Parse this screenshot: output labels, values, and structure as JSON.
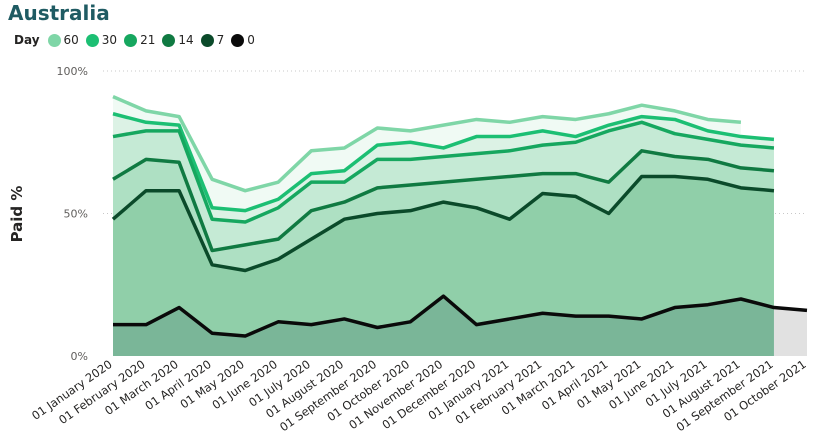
{
  "title": "Australia",
  "legend": {
    "title": "Day",
    "items": [
      {
        "label": "60",
        "color": "#7fd6a7"
      },
      {
        "label": "30",
        "color": "#1cbf73"
      },
      {
        "label": "21",
        "color": "#16a75f"
      },
      {
        "label": "14",
        "color": "#107a42"
      },
      {
        "label": "7",
        "color": "#0b4a2a"
      },
      {
        "label": "0",
        "color": "#0a0a0a"
      }
    ]
  },
  "chart_data": {
    "type": "area",
    "ylabel": "Paid %",
    "ylim": [
      0,
      100
    ],
    "yticks": [
      "0%",
      "50%",
      "100%"
    ],
    "grid": true,
    "categories": [
      "01 January 2020",
      "01 February 2020",
      "01 March 2020",
      "01 April 2020",
      "01 May 2020",
      "01 June 2020",
      "01 July 2020",
      "01 August 2020",
      "01 September 2020",
      "01 October 2020",
      "01 November 2020",
      "01 December 2020",
      "01 January 2021",
      "01 February 2021",
      "01 March 2021",
      "01 April 2021",
      "01 May 2021",
      "01 June 2021",
      "01 July 2021",
      "01 August 2021",
      "01 September 2021",
      "01 October 2021"
    ],
    "series": [
      {
        "name": "60",
        "color": "#7fd6a7",
        "values": [
          91,
          86,
          84,
          62,
          58,
          61,
          72,
          73,
          80,
          79,
          81,
          83,
          82,
          84,
          83,
          85,
          88,
          86,
          83,
          82,
          null,
          null
        ]
      },
      {
        "name": "30",
        "color": "#1cbf73",
        "values": [
          85,
          82,
          81,
          52,
          51,
          55,
          64,
          65,
          74,
          75,
          73,
          77,
          77,
          79,
          77,
          81,
          84,
          83,
          79,
          77,
          76,
          null
        ]
      },
      {
        "name": "21",
        "color": "#16a75f",
        "values": [
          77,
          79,
          79,
          48,
          47,
          52,
          61,
          61,
          69,
          69,
          70,
          71,
          72,
          74,
          75,
          79,
          82,
          78,
          76,
          74,
          73,
          null
        ]
      },
      {
        "name": "14",
        "color": "#107a42",
        "values": [
          62,
          69,
          68,
          37,
          39,
          41,
          51,
          54,
          59,
          60,
          61,
          62,
          63,
          64,
          64,
          61,
          72,
          70,
          69,
          66,
          65,
          null
        ]
      },
      {
        "name": "7",
        "color": "#0b4a2a",
        "values": [
          48,
          58,
          58,
          32,
          30,
          34,
          41,
          48,
          50,
          51,
          54,
          52,
          48,
          57,
          56,
          50,
          63,
          63,
          62,
          59,
          58,
          null
        ]
      },
      {
        "name": "0",
        "color": "#0a0a0a",
        "values": [
          11,
          11,
          17,
          8,
          7,
          12,
          11,
          13,
          10,
          12,
          21,
          11,
          13,
          15,
          14,
          14,
          13,
          17,
          18,
          20,
          17,
          16
        ]
      }
    ]
  }
}
